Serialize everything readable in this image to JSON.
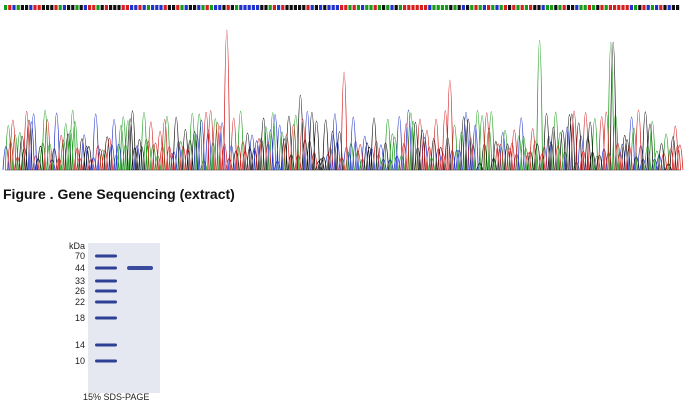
{
  "figure": {
    "caption": "Figure . Gene Sequencing (extract)"
  },
  "gel": {
    "unit": "kDa",
    "markers": [
      "70",
      "44",
      "33",
      "26",
      "22",
      "18",
      "14",
      "10"
    ],
    "caption": "15% SDS-PAGE"
  }
}
